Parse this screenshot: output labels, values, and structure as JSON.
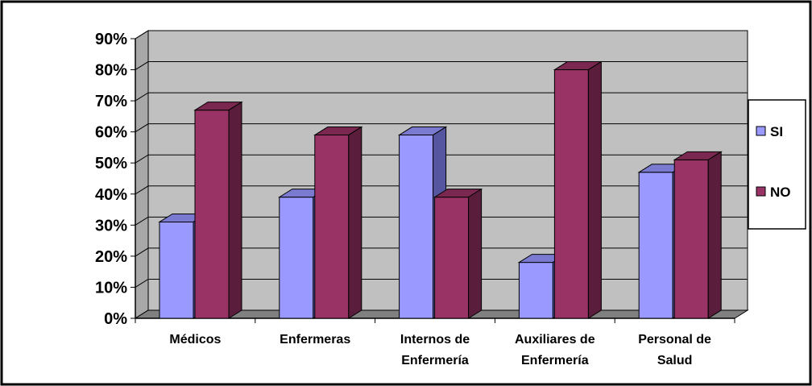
{
  "chart_data": {
    "type": "bar",
    "style": "3d-clustered-column",
    "categories": [
      [
        "Médicos"
      ],
      [
        "Enfermeras"
      ],
      [
        "Internos de",
        "Enfermería"
      ],
      [
        "Auxiliares de",
        "Enfermería"
      ],
      [
        "Personal de",
        "Salud"
      ]
    ],
    "series": [
      {
        "name": "SI",
        "values": [
          31,
          39,
          59,
          18,
          47
        ]
      },
      {
        "name": "NO",
        "values": [
          67,
          59,
          39,
          80,
          51
        ]
      }
    ],
    "yticks": [
      "0%",
      "10%",
      "20%",
      "30%",
      "40%",
      "50%",
      "60%",
      "70%",
      "80%",
      "90%"
    ],
    "ylim": [
      0,
      90
    ],
    "grid": true,
    "legend": "right",
    "colors": {
      "si_front": "#9999ff",
      "si_top": "#7a7ad0",
      "si_side": "#5555a0",
      "no_front": "#993366",
      "no_top": "#7a2850",
      "no_side": "#5a1e3c",
      "wall": "#c0c0c0",
      "floor": "#808080"
    }
  }
}
